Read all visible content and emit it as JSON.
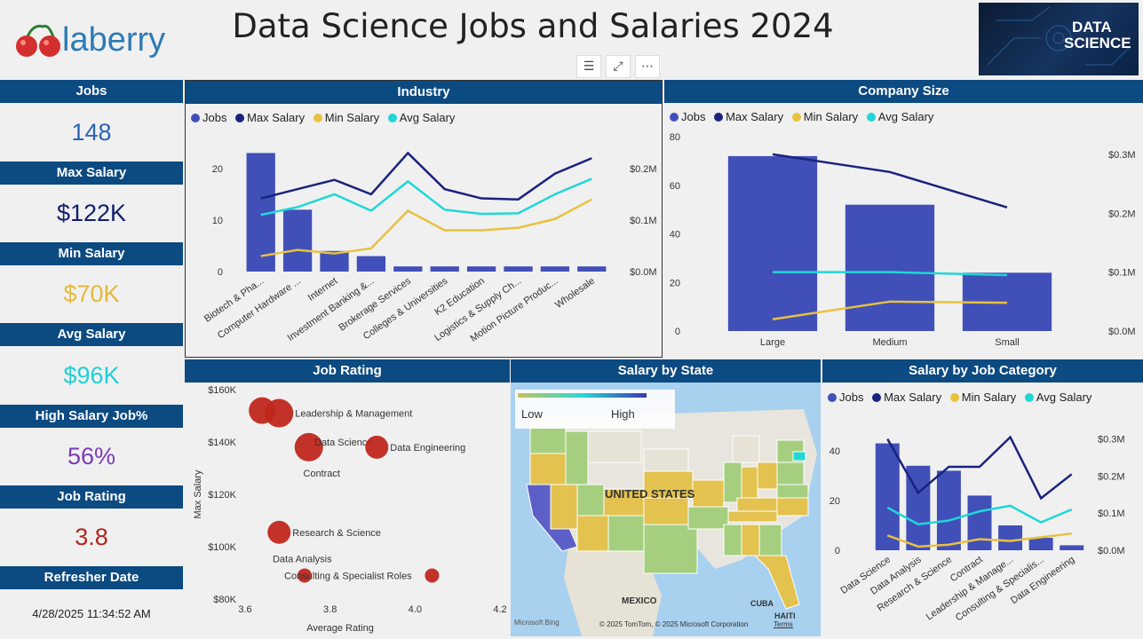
{
  "header": {
    "logo_text": "laberry",
    "title": "Data Science Jobs and Salaries 2024",
    "banner_text_1": "DATA",
    "banner_text_2": "SCIENCE"
  },
  "toolbar": {
    "filter_icon": "filter-icon",
    "expand_icon": "focus-mode-icon",
    "more_icon": "more-options-icon"
  },
  "kpis": {
    "jobs": {
      "label": "Jobs",
      "value": "148",
      "color": "#2b63b8"
    },
    "max_salary": {
      "label": "Max Salary",
      "value": "$122K",
      "color": "#12206b"
    },
    "min_salary": {
      "label": "Min Salary",
      "value": "$70K",
      "color": "#e3b93c"
    },
    "avg_salary": {
      "label": "Avg Salary",
      "value": "$96K",
      "color": "#1fcfd6"
    },
    "high_salary_pct": {
      "label": "High Salary Job%",
      "value": "56%",
      "color": "#7a3ab7"
    },
    "job_rating": {
      "label": "Job Rating",
      "value": "3.8",
      "color": "#b3261e"
    },
    "refresher": {
      "label": "Refresher Date",
      "value": "4/28/2025 11:34:52 AM"
    }
  },
  "legend": {
    "jobs": "Jobs",
    "max": "Max Salary",
    "min": "Min Salary",
    "avg": "Avg Salary"
  },
  "colors": {
    "jobs": "#4150b8",
    "max": "#1a237e",
    "min": "#e8c13f",
    "avg": "#20d7d7",
    "bubble": "#c0271c"
  },
  "chart_data": [
    {
      "id": "industry",
      "type": "bar",
      "title": "Industry",
      "categories": [
        "Biotech & Pha...",
        "Computer Hardware ...",
        "Internet",
        "Investment Banking &...",
        "Brokerage Services",
        "Colleges & Universities",
        "K2 Education",
        "Logistics & Supply Ch...",
        "Motion Picture Produc...",
        "Wholesale"
      ],
      "series": [
        {
          "name": "Jobs",
          "axis": "left",
          "values": [
            23,
            12,
            4,
            3,
            1,
            1,
            1,
            1,
            1,
            1
          ]
        },
        {
          "name": "Max Salary",
          "axis": "right",
          "values": [
            142000,
            160000,
            178000,
            150000,
            230000,
            160000,
            142000,
            140000,
            190000,
            220000
          ]
        },
        {
          "name": "Min Salary",
          "axis": "right",
          "values": [
            30000,
            42000,
            35000,
            45000,
            118000,
            80000,
            80000,
            85000,
            102000,
            140000
          ]
        },
        {
          "name": "Avg Salary",
          "axis": "right",
          "values": [
            110000,
            125000,
            150000,
            118000,
            175000,
            120000,
            112000,
            113000,
            150000,
            180000
          ]
        }
      ],
      "left_ticks": [
        "0",
        "10",
        "20"
      ],
      "left_range": [
        0,
        26
      ],
      "right_ticks": [
        "$0.0M",
        "$0.1M",
        "$0.2M"
      ],
      "right_range": [
        0,
        260000
      ]
    },
    {
      "id": "company_size",
      "type": "bar",
      "title": "Company Size",
      "categories": [
        "Large",
        "Medium",
        "Small"
      ],
      "series": [
        {
          "name": "Jobs",
          "axis": "left",
          "values": [
            72,
            52,
            24
          ]
        },
        {
          "name": "Max Salary",
          "axis": "right",
          "values": [
            300000,
            270000,
            210000
          ]
        },
        {
          "name": "Min Salary",
          "axis": "right",
          "values": [
            20000,
            50000,
            48000
          ]
        },
        {
          "name": "Avg Salary",
          "axis": "right",
          "values": [
            100000,
            100000,
            95000
          ]
        }
      ],
      "left_ticks": [
        "0",
        "20",
        "40",
        "60",
        "80"
      ],
      "left_range": [
        0,
        80
      ],
      "right_ticks": [
        "$0.0M",
        "$0.1M",
        "$0.2M",
        "$0.3M"
      ],
      "right_range": [
        0,
        330000
      ]
    },
    {
      "id": "job_category",
      "type": "bar",
      "title": "Salary by Job Category",
      "categories": [
        "Data Science",
        "Data Analysis",
        "Research & Science",
        "Contract",
        "Leadership & Manage...",
        "Consulting & Specialis...",
        "Data Engineering"
      ],
      "series": [
        {
          "name": "Jobs",
          "axis": "left",
          "values": [
            43,
            34,
            32,
            22,
            10,
            5,
            2
          ]
        },
        {
          "name": "Max Salary",
          "axis": "right",
          "values": [
            300000,
            155000,
            225000,
            225000,
            305000,
            140000,
            205000
          ]
        },
        {
          "name": "Min Salary",
          "axis": "right",
          "values": [
            40000,
            10000,
            15000,
            30000,
            25000,
            35000,
            45000
          ]
        },
        {
          "name": "Avg Salary",
          "axis": "right",
          "values": [
            115000,
            70000,
            80000,
            105000,
            120000,
            75000,
            110000
          ]
        }
      ],
      "left_ticks": [
        "0",
        "20",
        "40"
      ],
      "left_range": [
        0,
        50
      ],
      "right_ticks": [
        "$0.0M",
        "$0.1M",
        "$0.2M",
        "$0.3M"
      ],
      "right_range": [
        0,
        335000
      ]
    },
    {
      "id": "job_rating",
      "type": "scatter",
      "title": "Job Rating",
      "xlabel": "Average Rating",
      "ylabel": "Max Salary",
      "x_ticks": [
        "3.6",
        "3.8",
        "4.0",
        "4.2"
      ],
      "x_range": [
        3.6,
        4.2
      ],
      "y_ticks": [
        "$80K",
        "$100K",
        "$120K",
        "$140K",
        "$160K"
      ],
      "y_range": [
        80000,
        160000
      ],
      "points": [
        {
          "label": "Leadership & Management",
          "x": 3.68,
          "y": 151000,
          "size": 16
        },
        {
          "label": "",
          "x": 3.64,
          "y": 152000,
          "size": 15
        },
        {
          "label": "Data Science",
          "x": 3.75,
          "y": 138000,
          "size": 16
        },
        {
          "label": "Data Engineering",
          "x": 3.91,
          "y": 138000,
          "size": 13
        },
        {
          "label": "Contract",
          "x": 3.72,
          "y": 137000,
          "size": 1
        },
        {
          "label": "Research & Science",
          "x": 3.68,
          "y": 105500,
          "size": 13
        },
        {
          "label": "Data Analysis",
          "x": 3.74,
          "y": 89000,
          "size": 8
        },
        {
          "label": "Consulting & Specialist Roles",
          "x": 4.04,
          "y": 89000,
          "size": 8
        }
      ]
    }
  ],
  "map": {
    "title": "Salary by State",
    "legend_low": "Low",
    "legend_high": "High",
    "country_label": "UNITED STATES",
    "mexico_label": "MEXICO",
    "cuba_label": "CUBA",
    "haiti_label": "HAITI",
    "attribution": "© 2025 TomTom, © 2025 Microsoft Corporation",
    "terms": "Terms",
    "bing": "Microsoft Bing"
  }
}
